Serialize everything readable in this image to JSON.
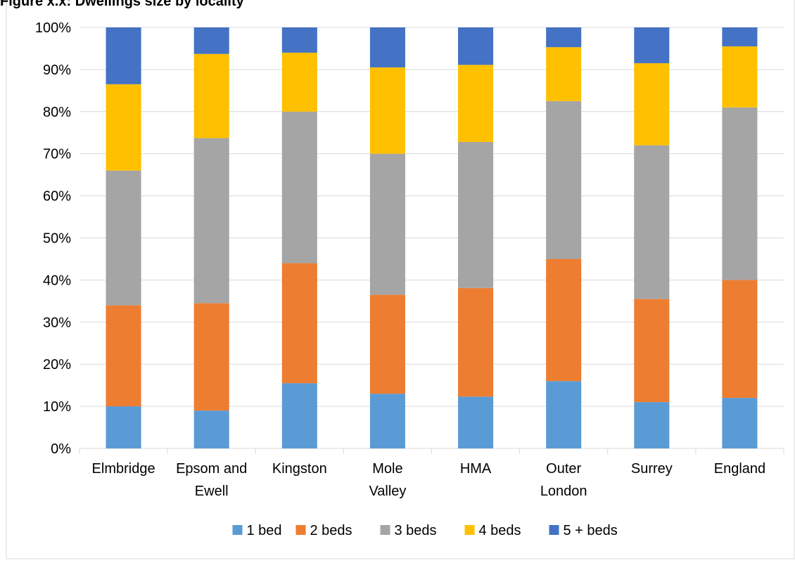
{
  "caption_fragment": "Figure x.x: Dwellings size by locality",
  "chart_data": {
    "type": "bar",
    "stacked": true,
    "percent": true,
    "categories": [
      [
        "Elmbridge"
      ],
      [
        "Epsom and",
        "Ewell"
      ],
      [
        "Kingston"
      ],
      [
        "Mole",
        "Valley"
      ],
      [
        "HMA"
      ],
      [
        "Outer",
        "London"
      ],
      [
        "Surrey"
      ],
      [
        "England"
      ]
    ],
    "series": [
      {
        "name": "1 bed",
        "color": "#5B9BD5",
        "values": [
          10,
          9,
          15.5,
          13,
          12.3,
          16,
          11,
          12
        ]
      },
      {
        "name": "2 beds",
        "color": "#ED7D31",
        "values": [
          24,
          25.5,
          28.5,
          23.5,
          25.8,
          29,
          24.5,
          28
        ]
      },
      {
        "name": "3 beds",
        "color": "#A5A5A5",
        "values": [
          32,
          39.2,
          36,
          33.5,
          34.7,
          37.5,
          36.5,
          41
        ]
      },
      {
        "name": "4 beds",
        "color": "#FFC000",
        "values": [
          20.5,
          20,
          14,
          20.5,
          18.3,
          12.8,
          19.5,
          14.5
        ]
      },
      {
        "name": "5 + beds",
        "color": "#4472C4",
        "values": [
          13.5,
          6.3,
          6,
          9.5,
          8.9,
          4.7,
          8.5,
          4.5
        ]
      }
    ],
    "ylim": [
      0,
      100
    ],
    "yticks": [
      "0%",
      "10%",
      "20%",
      "30%",
      "40%",
      "50%",
      "60%",
      "70%",
      "80%",
      "90%",
      "100%"
    ],
    "grid": true,
    "legend": "bottom"
  }
}
